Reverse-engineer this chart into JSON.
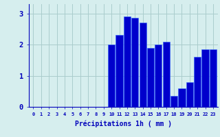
{
  "hours": [
    0,
    1,
    2,
    3,
    4,
    5,
    6,
    7,
    8,
    9,
    10,
    11,
    12,
    13,
    14,
    15,
    16,
    17,
    18,
    19,
    20,
    21,
    22,
    23
  ],
  "values": [
    0,
    0,
    0,
    0,
    0,
    0,
    0,
    0,
    0,
    0,
    2.0,
    2.3,
    2.9,
    2.85,
    2.7,
    1.9,
    2.0,
    2.1,
    0.35,
    0.6,
    0.8,
    1.6,
    1.85,
    1.85
  ],
  "bar_color": "#0000cc",
  "bar_edge_color": "#3366ff",
  "background_color": "#d6eeee",
  "grid_color": "#aacccc",
  "xlabel": "Précipitations 1h ( mm )",
  "xlabel_color": "#0000bb",
  "tick_color": "#0000bb",
  "ylim": [
    0,
    3.3
  ],
  "yticks": [
    0,
    1,
    2,
    3
  ]
}
